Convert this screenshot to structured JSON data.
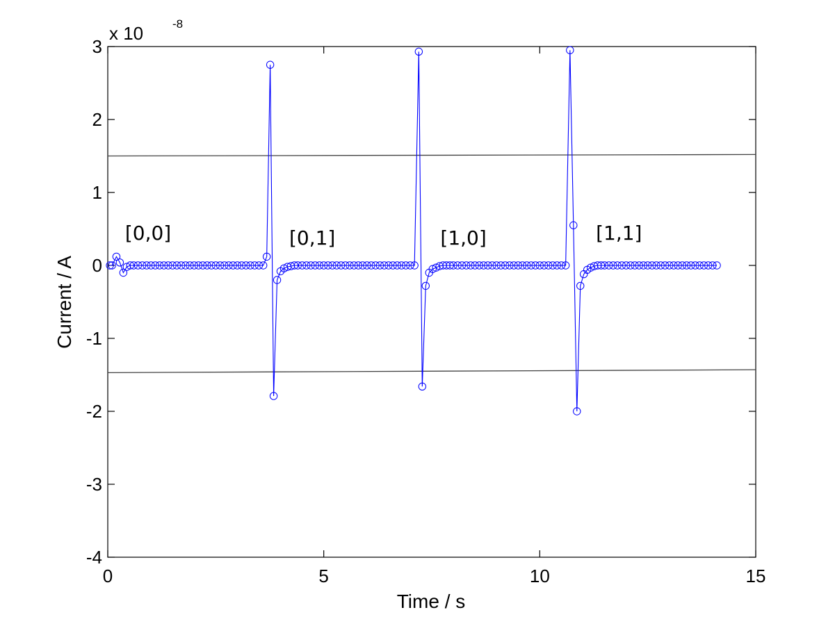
{
  "chart_data": {
    "type": "line",
    "xlabel": "Time / s",
    "ylabel": "Current / A",
    "xlim": [
      0,
      15
    ],
    "ylim": [
      -4,
      3
    ],
    "xticks": [
      0,
      5,
      10,
      15
    ],
    "yticks": [
      -4,
      -3,
      -2,
      -1,
      0,
      1,
      2,
      3
    ],
    "y_exponent_base": "x 10",
    "y_exponent_power": "-8",
    "grid": false,
    "line_color": "#0000ff",
    "reference_line_color": "#404040",
    "reference_lines": [
      {
        "x": [
          0,
          15
        ],
        "y": [
          1.5,
          1.52
        ]
      },
      {
        "x": [
          0,
          15
        ],
        "y": [
          -1.47,
          -1.43
        ]
      }
    ],
    "annotations": [
      {
        "text": "[0,0]",
        "x": 0.4,
        "y": 0.45
      },
      {
        "text": "[0,1]",
        "x": 4.2,
        "y": 0.38
      },
      {
        "text": "[1,0]",
        "x": 7.7,
        "y": 0.38
      },
      {
        "text": "[1,1]",
        "x": 11.3,
        "y": 0.45
      }
    ],
    "series": [
      {
        "marker": "circle",
        "x": [
          0.05,
          0.1,
          0.2,
          0.28,
          0.36,
          0.44,
          0.52,
          0.6,
          0.7,
          0.8,
          0.9,
          1.0,
          1.1,
          1.2,
          1.3,
          1.4,
          1.5,
          1.6,
          1.7,
          1.8,
          1.9,
          2.0,
          2.1,
          2.2,
          2.3,
          2.4,
          2.5,
          2.6,
          2.7,
          2.8,
          2.9,
          3.0,
          3.1,
          3.2,
          3.3,
          3.4,
          3.5,
          3.6,
          3.68,
          3.76,
          3.84,
          3.92,
          4.0,
          4.08,
          4.16,
          4.24,
          4.32,
          4.4,
          4.5,
          4.6,
          4.7,
          4.8,
          4.9,
          5.0,
          5.1,
          5.2,
          5.3,
          5.4,
          5.5,
          5.6,
          5.7,
          5.8,
          5.9,
          6.0,
          6.1,
          6.2,
          6.3,
          6.4,
          6.5,
          6.6,
          6.7,
          6.8,
          6.9,
          7.0,
          7.1,
          7.2,
          7.28,
          7.36,
          7.44,
          7.52,
          7.6,
          7.68,
          7.76,
          7.84,
          7.92,
          8.0,
          8.1,
          8.2,
          8.3,
          8.4,
          8.5,
          8.6,
          8.7,
          8.8,
          8.9,
          9.0,
          9.1,
          9.2,
          9.3,
          9.4,
          9.5,
          9.6,
          9.7,
          9.8,
          9.9,
          10.0,
          10.1,
          10.2,
          10.3,
          10.4,
          10.5,
          10.6,
          10.7,
          10.78,
          10.86,
          10.94,
          11.02,
          11.1,
          11.18,
          11.26,
          11.34,
          11.42,
          11.5,
          11.6,
          11.7,
          11.8,
          11.9,
          12.0,
          12.1,
          12.2,
          12.3,
          12.4,
          12.5,
          12.6,
          12.7,
          12.8,
          12.9,
          13.0,
          13.1,
          13.2,
          13.3,
          13.4,
          13.5,
          13.6,
          13.7,
          13.8,
          13.9,
          14.0,
          14.1
        ],
        "y": [
          0.0,
          0.0,
          0.12,
          0.04,
          -0.1,
          -0.02,
          0.0,
          0.0,
          0.0,
          0.0,
          0.0,
          0.0,
          0.0,
          0.0,
          0.0,
          0.0,
          0.0,
          0.0,
          0.0,
          0.0,
          0.0,
          0.0,
          0.0,
          0.0,
          0.0,
          0.0,
          0.0,
          0.0,
          0.0,
          0.0,
          0.0,
          0.0,
          0.0,
          0.0,
          0.0,
          0.0,
          0.0,
          0.0,
          0.12,
          2.75,
          -1.79,
          -0.2,
          -0.08,
          -0.04,
          -0.02,
          -0.01,
          0.0,
          0.0,
          0.0,
          0.0,
          0.0,
          0.0,
          0.0,
          0.0,
          0.0,
          0.0,
          0.0,
          0.0,
          0.0,
          0.0,
          0.0,
          0.0,
          0.0,
          0.0,
          0.0,
          0.0,
          0.0,
          0.0,
          0.0,
          0.0,
          0.0,
          0.0,
          0.0,
          0.0,
          0.0,
          2.93,
          -1.66,
          -0.28,
          -0.1,
          -0.05,
          -0.03,
          -0.01,
          0.0,
          0.0,
          0.0,
          0.0,
          0.0,
          0.0,
          0.0,
          0.0,
          0.0,
          0.0,
          0.0,
          0.0,
          0.0,
          0.0,
          0.0,
          0.0,
          0.0,
          0.0,
          0.0,
          0.0,
          0.0,
          0.0,
          0.0,
          0.0,
          0.0,
          0.0,
          0.0,
          0.0,
          0.0,
          0.0,
          2.95,
          0.55,
          -2.0,
          -0.28,
          -0.12,
          -0.06,
          -0.03,
          -0.01,
          0.0,
          0.0,
          0.0,
          0.0,
          0.0,
          0.0,
          0.0,
          0.0,
          0.0,
          0.0,
          0.0,
          0.0,
          0.0,
          0.0,
          0.0,
          0.0,
          0.0,
          0.0,
          0.0,
          0.0,
          0.0,
          0.0,
          0.0,
          0.0,
          0.0,
          0.0,
          0.0,
          0.0,
          0.0
        ]
      }
    ]
  }
}
